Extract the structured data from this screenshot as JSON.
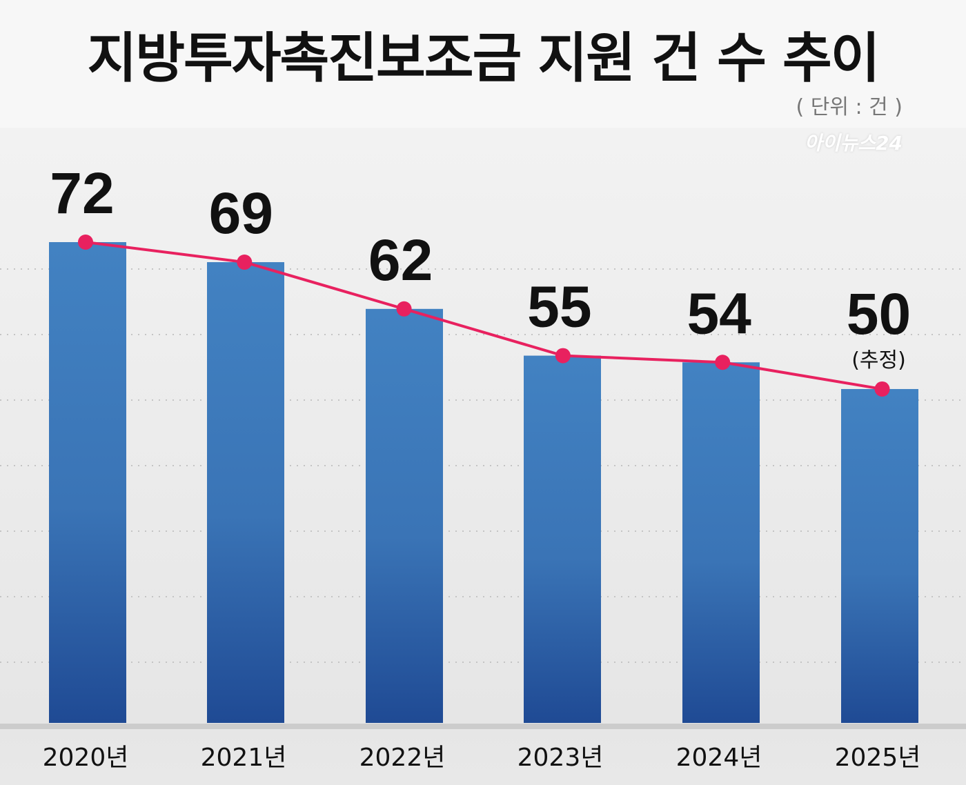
{
  "chart_data": {
    "type": "bar",
    "title": "지방투자촉진보조금 지원 건 수 추이",
    "unit": "( 단위 : 건 )",
    "source_logo": "아이뉴스24",
    "categories": [
      "2020년",
      "2021년",
      "2022년",
      "2023년",
      "2024년",
      "2025년"
    ],
    "values": [
      72,
      69,
      62,
      55,
      54,
      50
    ],
    "value_labels": [
      "72",
      "69",
      "62",
      "55",
      "54",
      "50"
    ],
    "annotations": [
      {
        "index": 5,
        "text": "(추정)"
      }
    ],
    "overlay_line": true,
    "ylim": [
      0,
      72
    ],
    "grid": true,
    "colors": {
      "bar_top": "#4282c2",
      "bar_bottom": "#1f4a94",
      "line": "#e8215f",
      "axis": "#cccccc"
    }
  }
}
